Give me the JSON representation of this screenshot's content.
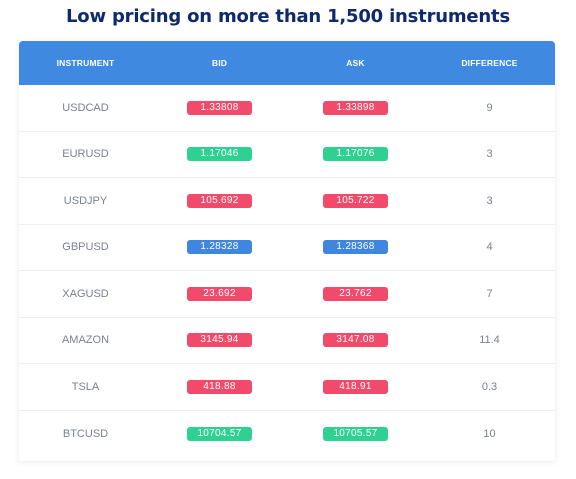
{
  "title": "Low pricing on more than 1,500 instruments",
  "colors": {
    "header_bg": "#3f8ae0",
    "title": "#0e2a6b",
    "red": "#f24a6a",
    "green": "#2fd192",
    "blue": "#3f86e0"
  },
  "table": {
    "headers": [
      "INSTRUMENT",
      "BID",
      "ASK",
      "DIFFERENCE"
    ],
    "rows": [
      {
        "instrument": "USDCAD",
        "bid": "1.33808",
        "ask": "1.33898",
        "difference": "9",
        "color": "red"
      },
      {
        "instrument": "EURUSD",
        "bid": "1.17046",
        "ask": "1.17076",
        "difference": "3",
        "color": "green"
      },
      {
        "instrument": "USDJPY",
        "bid": "105.692",
        "ask": "105.722",
        "difference": "3",
        "color": "red"
      },
      {
        "instrument": "GBPUSD",
        "bid": "1.28328",
        "ask": "1.28368",
        "difference": "4",
        "color": "blue"
      },
      {
        "instrument": "XAGUSD",
        "bid": "23.692",
        "ask": "23.762",
        "difference": "7",
        "color": "red"
      },
      {
        "instrument": "AMAZON",
        "bid": "3145.94",
        "ask": "3147.08",
        "difference": "11.4",
        "color": "red"
      },
      {
        "instrument": "TSLA",
        "bid": "418.88",
        "ask": "418.91",
        "difference": "0.3",
        "color": "red"
      },
      {
        "instrument": "BTCUSD",
        "bid": "10704.57",
        "ask": "10705.57",
        "difference": "10",
        "color": "green"
      }
    ]
  }
}
